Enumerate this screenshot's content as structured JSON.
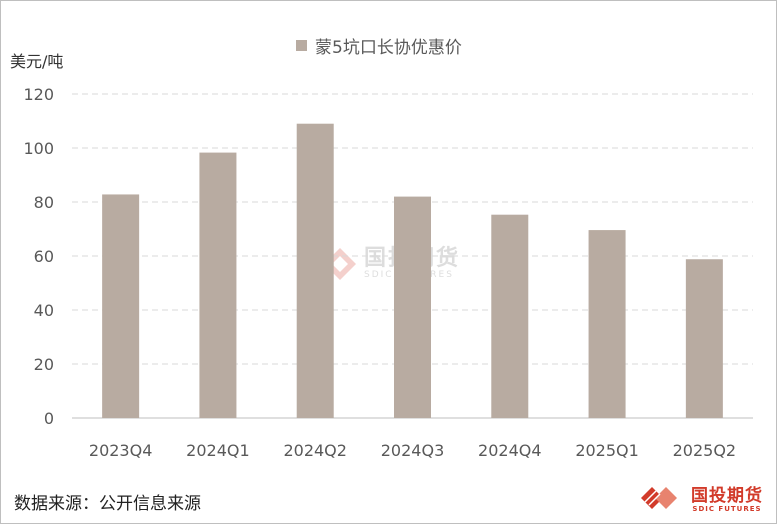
{
  "chart_data": {
    "type": "bar",
    "title": "",
    "legend": [
      "蒙5坑口长协优惠价"
    ],
    "unit_label": "美元/吨",
    "categories": [
      "2023Q4",
      "2024Q1",
      "2024Q2",
      "2024Q3",
      "2024Q4",
      "2025Q1",
      "2025Q2"
    ],
    "series": [
      {
        "name": "蒙5坑口长协优惠价",
        "values": [
          82.8,
          98.3,
          109,
          82,
          75.3,
          69.6,
          58.8
        ]
      }
    ],
    "ylim": [
      0,
      120
    ],
    "yticks": [
      0,
      20,
      40,
      60,
      80,
      100,
      120
    ],
    "grid": true,
    "legend_position": "top",
    "bar_color": "#b8aba1",
    "grid_color": "#d9d9d9"
  },
  "source": "数据来源：公开信息来源",
  "logo": {
    "cn": "国投期货",
    "en": "SDIC FUTURES"
  },
  "watermark": {
    "cn": "国投期货",
    "en": "SDIC FUTURES"
  },
  "colors": {
    "brand_red": "#d23b2a"
  }
}
